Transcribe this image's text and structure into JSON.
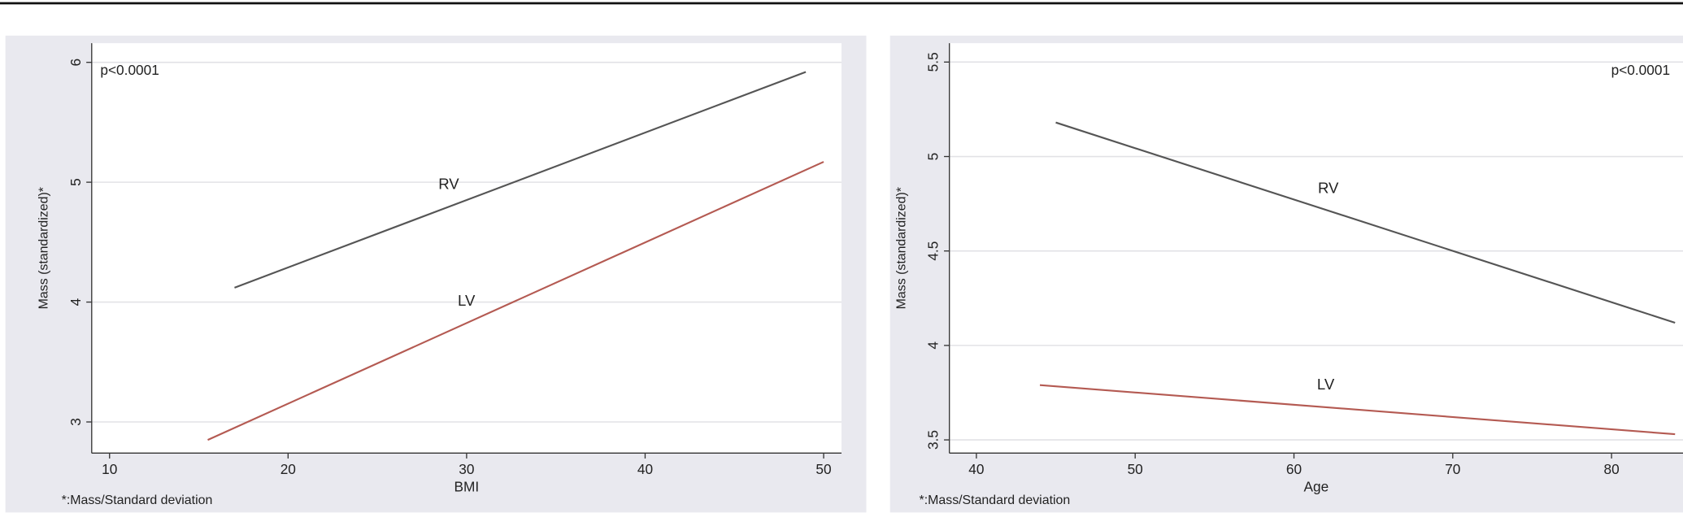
{
  "chart_data": [
    {
      "type": "line",
      "xlabel": "BMI",
      "ylabel": "Mass (standardized)*",
      "note": "*:Mass/Standard deviation",
      "annotation": "p<0.0001",
      "annotation_corner": "top-left",
      "xlim": [
        9,
        51
      ],
      "xticks": [
        10,
        20,
        30,
        40,
        50
      ],
      "ylim": [
        2.74,
        6.16
      ],
      "yticks": [
        3,
        4,
        5,
        6
      ],
      "grid": true,
      "series": [
        {
          "name": "RV",
          "color": "#555555",
          "x": [
            17,
            49
          ],
          "values": [
            4.12,
            5.92
          ]
        },
        {
          "name": "LV",
          "color": "#b45a52",
          "x": [
            15.5,
            50
          ],
          "values": [
            2.85,
            5.17
          ]
        }
      ]
    },
    {
      "type": "line",
      "xlabel": "Age",
      "ylabel": "Mass (standardized)*",
      "note": "*:Mass/Standard deviation",
      "annotation": "p<0.0001",
      "annotation_corner": "top-right",
      "xlim": [
        38.3,
        84.5
      ],
      "xticks": [
        40,
        50,
        60,
        70,
        80
      ],
      "ylim": [
        3.43,
        5.6
      ],
      "yticks": [
        3.5,
        4,
        4.5,
        5,
        5.5
      ],
      "grid": true,
      "series": [
        {
          "name": "RV",
          "color": "#555555",
          "x": [
            45,
            84
          ],
          "values": [
            5.18,
            4.12
          ]
        },
        {
          "name": "LV",
          "color": "#b45a52",
          "x": [
            44,
            84
          ],
          "values": [
            3.79,
            3.53
          ]
        }
      ]
    }
  ]
}
